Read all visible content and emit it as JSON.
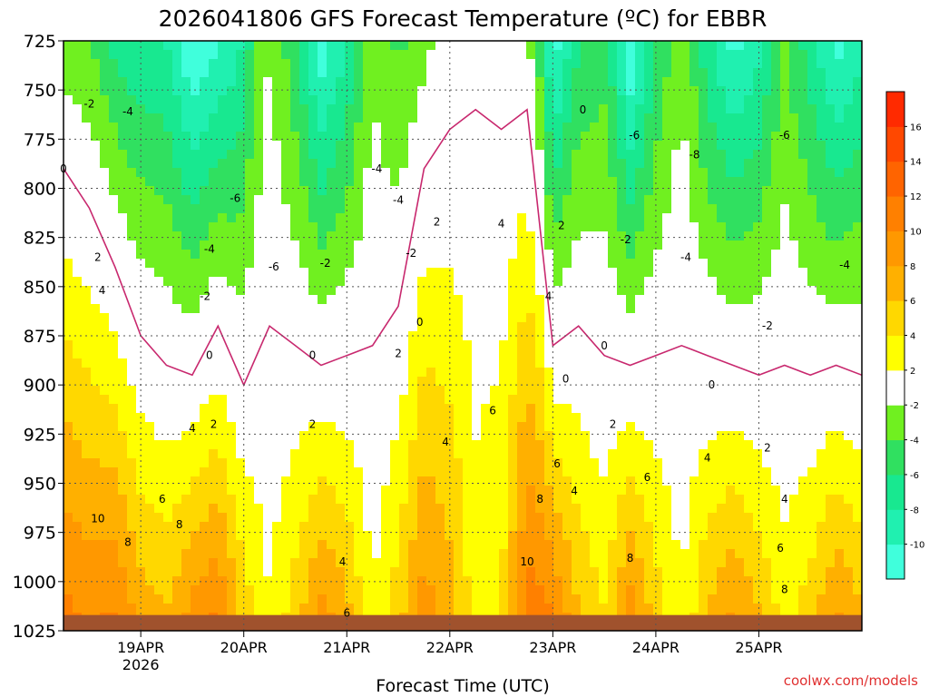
{
  "chart_data": {
    "type": "heatmap",
    "title": "2026041806 GFS Forecast Temperature (ºC) for EBBR",
    "xlabel": "Forecast Time (UTC)",
    "ylabel": "",
    "credit": "coolwx.com/models",
    "y_ticks": [
      725,
      750,
      775,
      800,
      825,
      850,
      875,
      900,
      925,
      950,
      975,
      1000,
      1025
    ],
    "ylim": [
      1025,
      725
    ],
    "y_scale": "pressure (hPa), increasing downward",
    "x_ticks": [
      "19APR",
      "20APR",
      "21APR",
      "22APR",
      "23APR",
      "24APR",
      "25APR"
    ],
    "x_year_label": "2026",
    "x_range_hours_from_init": [
      0,
      186
    ],
    "grid": "dotted",
    "colorbar": {
      "placement": "right",
      "bounds": [
        -12,
        -10,
        -8,
        -6,
        -4,
        -2,
        2,
        4,
        6,
        8,
        10,
        12,
        14,
        16,
        18
      ],
      "tick_labels": [
        "-10",
        "-8",
        "-6",
        "-4",
        "-2",
        "2",
        "4",
        "6",
        "8",
        "10",
        "12",
        "14",
        "16"
      ],
      "colors": [
        "#40ffdc",
        "#20f0b0",
        "#18e890",
        "#30e060",
        "#70f020",
        "#ffffff",
        "#ffff00",
        "#ffd800",
        "#ffb000",
        "#ff9800",
        "#ff8000",
        "#ff6400",
        "#ff4800",
        "#ff2a00"
      ]
    },
    "contour_levels": [
      -8,
      -6,
      -4,
      -2,
      0,
      2,
      4,
      6,
      8,
      10
    ],
    "zero_contour_color": "#c8286e",
    "ground_color": "#a0522d",
    "times_hours": [
      0,
      6,
      12,
      18,
      24,
      30,
      36,
      42,
      48,
      54,
      60,
      66,
      72,
      78,
      84,
      90,
      96,
      102,
      108,
      114,
      120,
      126,
      132,
      138,
      144,
      150,
      156,
      162,
      168,
      174,
      180,
      186
    ],
    "surface_temp_c": [
      10.5,
      9.5,
      10,
      7,
      6,
      8.5,
      10,
      5,
      2,
      5,
      8.5,
      6.5,
      2,
      5,
      9,
      7,
      3,
      4,
      11,
      10,
      6,
      4,
      9,
      5,
      2,
      6,
      8,
      6,
      3,
      5,
      8,
      6
    ],
    "freezing_level_hpa": [
      790,
      810,
      840,
      875,
      890,
      895,
      870,
      900,
      870,
      880,
      890,
      885,
      880,
      860,
      790,
      770,
      760,
      770,
      760,
      880,
      870,
      885,
      890,
      885,
      880,
      885,
      890,
      895,
      890,
      895,
      890,
      895
    ],
    "contour_labels": [
      {
        "v": "-2",
        "t": 6,
        "p": 757
      },
      {
        "v": "-4",
        "t": 15,
        "p": 761
      },
      {
        "v": "0",
        "t": 0,
        "p": 790
      },
      {
        "v": "2",
        "t": 8,
        "p": 835
      },
      {
        "v": "4",
        "t": 9,
        "p": 852
      },
      {
        "v": "10",
        "t": 8,
        "p": 968
      },
      {
        "v": "8",
        "t": 15,
        "p": 980
      },
      {
        "v": "6",
        "t": 23,
        "p": 958
      },
      {
        "v": "8",
        "t": 27,
        "p": 971
      },
      {
        "v": "-4",
        "t": 34,
        "p": 831
      },
      {
        "v": "-2",
        "t": 33,
        "p": 855
      },
      {
        "v": "-6",
        "t": 40,
        "p": 805
      },
      {
        "v": "0",
        "t": 34,
        "p": 885
      },
      {
        "v": "4",
        "t": 30,
        "p": 922
      },
      {
        "v": "2",
        "t": 35,
        "p": 920
      },
      {
        "v": "-6",
        "t": 49,
        "p": 840
      },
      {
        "v": "-2",
        "t": 61,
        "p": 838
      },
      {
        "v": "0",
        "t": 58,
        "p": 885
      },
      {
        "v": "2",
        "t": 58,
        "p": 920
      },
      {
        "v": "4",
        "t": 65,
        "p": 990
      },
      {
        "v": "6",
        "t": 66,
        "p": 1016
      },
      {
        "v": "-4",
        "t": 73,
        "p": 790
      },
      {
        "v": "-4",
        "t": 78,
        "p": 806
      },
      {
        "v": "-2",
        "t": 81,
        "p": 833
      },
      {
        "v": "0",
        "t": 83,
        "p": 868
      },
      {
        "v": "2",
        "t": 78,
        "p": 884
      },
      {
        "v": "4",
        "t": 89,
        "p": 929
      },
      {
        "v": "2",
        "t": 87,
        "p": 817
      },
      {
        "v": "4",
        "t": 102,
        "p": 818
      },
      {
        "v": "6",
        "t": 100,
        "p": 913
      },
      {
        "v": "2",
        "t": 116,
        "p": 819
      },
      {
        "v": "4",
        "t": 113,
        "p": 855
      },
      {
        "v": "6",
        "t": 115,
        "p": 940
      },
      {
        "v": "8",
        "t": 111,
        "p": 958
      },
      {
        "v": "10",
        "t": 108,
        "p": 990
      },
      {
        "v": "4",
        "t": 119,
        "p": 954
      },
      {
        "v": "0",
        "t": 121,
        "p": 760
      },
      {
        "v": "0",
        "t": 117,
        "p": 897
      },
      {
        "v": "0",
        "t": 126,
        "p": 880
      },
      {
        "v": "-6",
        "t": 133,
        "p": 773
      },
      {
        "v": "-8",
        "t": 147,
        "p": 783
      },
      {
        "v": "-6",
        "t": 168,
        "p": 773
      },
      {
        "v": "-2",
        "t": 131,
        "p": 826
      },
      {
        "v": "-4",
        "t": 145,
        "p": 835
      },
      {
        "v": "-4",
        "t": 182,
        "p": 839
      },
      {
        "v": "-2",
        "t": 164,
        "p": 870
      },
      {
        "v": "0",
        "t": 151,
        "p": 900
      },
      {
        "v": "2",
        "t": 128,
        "p": 920
      },
      {
        "v": "4",
        "t": 150,
        "p": 937
      },
      {
        "v": "2",
        "t": 164,
        "p": 932
      },
      {
        "v": "6",
        "t": 136,
        "p": 947
      },
      {
        "v": "4",
        "t": 168,
        "p": 958
      },
      {
        "v": "6",
        "t": 167,
        "p": 983
      },
      {
        "v": "8",
        "t": 132,
        "p": 988
      },
      {
        "v": "8",
        "t": 168,
        "p": 1004
      }
    ]
  }
}
